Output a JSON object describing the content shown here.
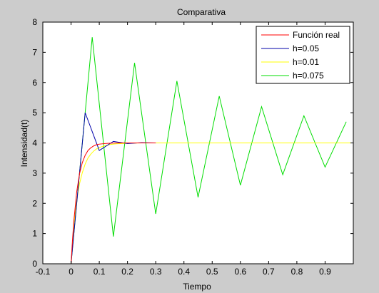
{
  "window": {
    "background": "#cccccc"
  },
  "chart_data": {
    "type": "line",
    "title": "Comparativa",
    "xlabel": "Tiempo",
    "ylabel": "Intensidad(t)",
    "xlim": [
      -0.1,
      1.0
    ],
    "ylim": [
      0,
      8
    ],
    "xticks": [
      -0.1,
      0,
      0.1,
      0.2,
      0.3,
      0.4,
      0.5,
      0.6,
      0.7,
      0.8,
      0.9
    ],
    "xtick_labels": [
      "-0.1",
      "0",
      "0.1",
      "0.2",
      "0.3",
      "0.4",
      "0.5",
      "0.6",
      "0.7",
      "0.8",
      "0.9"
    ],
    "yticks": [
      0,
      1,
      2,
      3,
      4,
      5,
      6,
      7,
      8
    ],
    "ytick_labels": [
      "0",
      "1",
      "2",
      "3",
      "4",
      "5",
      "6",
      "7",
      "8"
    ],
    "grid": false,
    "legend_position": "top-right",
    "series": [
      {
        "name": "h=0.075",
        "color": "#00dd00",
        "x": [
          0,
          0.075,
          0.15,
          0.225,
          0.3,
          0.375,
          0.45,
          0.525,
          0.6,
          0.675,
          0.75,
          0.825,
          0.9,
          0.975
        ],
        "y": [
          0,
          7.5,
          0.9,
          6.65,
          1.65,
          6.05,
          2.2,
          5.55,
          2.6,
          5.2,
          2.95,
          4.9,
          3.2,
          4.7
        ]
      },
      {
        "name": "h=0.01",
        "color": "#ffff00",
        "x": [
          0,
          0.01,
          0.02,
          0.03,
          0.04,
          0.05,
          0.06,
          0.07,
          0.08,
          0.09,
          0.1,
          0.12,
          0.14,
          0.16,
          0.18,
          0.2,
          0.25,
          0.3,
          0.4,
          0.5,
          0.6,
          0.7,
          0.8,
          0.9,
          0.99
        ],
        "y": [
          0,
          1.3,
          2.1,
          2.65,
          3.02,
          3.3,
          3.5,
          3.63,
          3.73,
          3.8,
          3.85,
          3.91,
          3.95,
          3.97,
          3.98,
          3.99,
          4.0,
          4.0,
          4.0,
          4.0,
          4.0,
          4.0,
          4.0,
          4.0,
          4.0
        ]
      },
      {
        "name": "h=0.05",
        "color": "#0000aa",
        "x": [
          0,
          0.05,
          0.1,
          0.15,
          0.2,
          0.25,
          0.3
        ],
        "y": [
          0,
          5.0,
          3.75,
          4.05,
          3.98,
          4.01,
          4.0
        ]
      },
      {
        "name": "Función real",
        "color": "#ff0000",
        "x": [
          0,
          0.005,
          0.01,
          0.02,
          0.03,
          0.04,
          0.05,
          0.06,
          0.07,
          0.08,
          0.09,
          0.1,
          0.12,
          0.14,
          0.16,
          0.18,
          0.2,
          0.25,
          0.3
        ],
        "y": [
          0,
          0.78,
          1.43,
          2.38,
          2.98,
          3.35,
          3.59,
          3.75,
          3.84,
          3.9,
          3.94,
          3.96,
          3.98,
          3.99,
          3.997,
          3.999,
          4.0,
          4.0,
          4.0
        ]
      }
    ],
    "legend_order": [
      "Función real",
      "h=0.05",
      "h=0.01",
      "h=0.075"
    ]
  }
}
